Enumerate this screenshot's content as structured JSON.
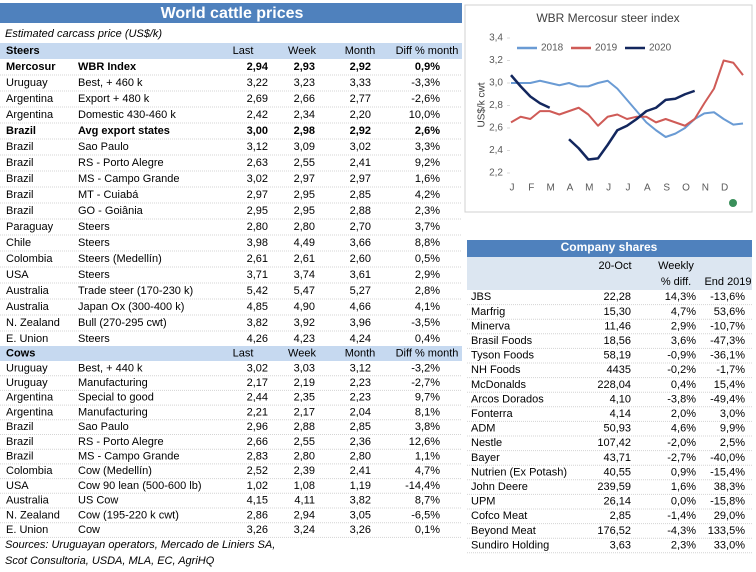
{
  "prices": {
    "title": "World cattle prices",
    "subtitle": "Estimated carcass price (US$/k)",
    "sections": [
      {
        "name": "Steers",
        "columns": [
          "Last",
          "Week",
          "Month",
          "Diff % month"
        ],
        "rows": [
          [
            "Mercosur",
            "WBR Index",
            "2,94",
            "2,93",
            "2,92",
            "0,9%"
          ],
          [
            "Uruguay",
            "Best, + 460 k",
            "3,22",
            "3,23",
            "3,33",
            "-3,3%"
          ],
          [
            "Argentina",
            "Export + 480 k",
            "2,69",
            "2,66",
            "2,77",
            "-2,6%"
          ],
          [
            "Argentina",
            "Domestic 430-460 k",
            "2,42",
            "2,34",
            "2,20",
            "10,0%"
          ],
          [
            "Brazil",
            "Avg export states",
            "3,00",
            "2,98",
            "2,92",
            "2,6%"
          ],
          [
            "Brazil",
            "Sao Paulo",
            "3,12",
            "3,09",
            "3,02",
            "3,3%"
          ],
          [
            "Brazil",
            "RS - Porto Alegre",
            "2,63",
            "2,55",
            "2,41",
            "9,2%"
          ],
          [
            "Brazil",
            "MS - Campo Grande",
            "3,02",
            "2,97",
            "2,97",
            "1,6%"
          ],
          [
            "Brazil",
            "MT - Cuiabá",
            "2,97",
            "2,95",
            "2,85",
            "4,2%"
          ],
          [
            "Brazil",
            "GO - Goiânia",
            "2,95",
            "2,95",
            "2,88",
            "2,3%"
          ],
          [
            "Paraguay",
            "Steers",
            "2,80",
            "2,80",
            "2,70",
            "3,7%"
          ],
          [
            "Chile",
            "Steers",
            "3,98",
            "4,49",
            "3,66",
            "8,8%"
          ],
          [
            "Colombia",
            "Steers (Medellín)",
            "2,61",
            "2,61",
            "2,60",
            "0,5%"
          ],
          [
            "USA",
            "Steers",
            "3,71",
            "3,74",
            "3,61",
            "2,9%"
          ],
          [
            "Australia",
            "Trade steer (170-230 k)",
            "5,42",
            "5,47",
            "5,27",
            "2,8%"
          ],
          [
            "Australia",
            "Japan Ox (300-400 k)",
            "4,85",
            "4,90",
            "4,66",
            "4,1%"
          ],
          [
            "N. Zealand",
            "Bull (270-295 cwt)",
            "3,82",
            "3,92",
            "3,96",
            "-3,5%"
          ],
          [
            "E. Union",
            "Steers",
            "4,26",
            "4,23",
            "4,24",
            "0,4%"
          ]
        ]
      },
      {
        "name": "Cows",
        "columns": [
          "Last",
          "Week",
          "Month",
          "Diff % month"
        ],
        "rows": [
          [
            "Uruguay",
            "Best, + 440 k",
            "3,02",
            "3,03",
            "3,12",
            "-3,2%"
          ],
          [
            "Uruguay",
            "Manufacturing",
            "2,17",
            "2,19",
            "2,23",
            "-2,7%"
          ],
          [
            "Argentina",
            "Special to good",
            "2,44",
            "2,35",
            "2,23",
            "9,7%"
          ],
          [
            "Argentina",
            "Manufacturing",
            "2,21",
            "2,17",
            "2,04",
            "8,1%"
          ],
          [
            "Brazil",
            "Sao Paulo",
            "2,96",
            "2,88",
            "2,85",
            "3,8%"
          ],
          [
            "Brazil",
            "RS - Porto Alegre",
            "2,66",
            "2,55",
            "2,36",
            "12,6%"
          ],
          [
            "Brazil",
            "MS - Campo Grande",
            "2,83",
            "2,80",
            "2,80",
            "1,1%"
          ],
          [
            "Colombia",
            "Cow (Medellín)",
            "2,52",
            "2,39",
            "2,41",
            "4,7%"
          ],
          [
            "USA",
            "Cow 90 lean (500-600 lb)",
            "1,02",
            "1,08",
            "1,19",
            "-14,4%"
          ],
          [
            "Australia",
            "US Cow",
            "4,15",
            "4,11",
            "3,82",
            "8,7%"
          ],
          [
            "N. Zealand",
            "Cow (195-220 k cwt)",
            "2,86",
            "2,94",
            "3,05",
            "-6,5%"
          ],
          [
            "E. Union",
            "Cow",
            "3,26",
            "3,24",
            "3,26",
            "0,1%"
          ]
        ]
      }
    ],
    "sources": [
      "Sources: Uruguayan operators, Mercado de Liniers SA,",
      "Scot Consultoria, USDA, MLA, EC, AgriHQ"
    ]
  },
  "chart": {
    "type": "line",
    "title": "WBR Mercosur steer index",
    "y_label": "US$/k cwt",
    "x_labels": [
      "J",
      "F",
      "M",
      "A",
      "M",
      "J",
      "J",
      "A",
      "S",
      "O",
      "N",
      "D"
    ],
    "x": [
      0,
      0.5,
      1,
      1.5,
      2,
      2.5,
      3,
      3.5,
      4,
      4.5,
      5,
      5.5,
      6,
      6.5,
      7,
      7.5,
      8,
      8.5,
      9,
      9.5,
      10,
      10.5,
      11,
      11.5,
      12
    ],
    "xlim": [
      0,
      12
    ],
    "ylim": [
      2.2,
      3.4
    ],
    "yticks": [
      {
        "value": 2.2,
        "label": "2,2"
      },
      {
        "value": 2.4,
        "label": "2,4"
      },
      {
        "value": 2.6,
        "label": "2,6"
      },
      {
        "value": 2.8,
        "label": "2,8"
      },
      {
        "value": 3,
        "label": "3,0"
      },
      {
        "value": 3.2,
        "label": "3,2"
      },
      {
        "value": 3.4,
        "label": "3,4"
      }
    ],
    "series": [
      {
        "name": "2018",
        "color": "#6a9bd4",
        "values": [
          3.0,
          3.0,
          3.0,
          3.02,
          3.0,
          2.98,
          3.0,
          2.97,
          2.97,
          3.0,
          3.02,
          2.95,
          2.85,
          2.75,
          2.65,
          2.58,
          2.52,
          2.55,
          2.6,
          2.68,
          2.73,
          2.74,
          2.68,
          2.63,
          2.64
        ]
      },
      {
        "name": "2019",
        "color": "#cf5b57",
        "values": [
          2.65,
          2.7,
          2.68,
          2.75,
          2.75,
          2.72,
          2.75,
          2.78,
          2.72,
          2.62,
          2.7,
          2.72,
          2.68,
          2.7,
          2.7,
          2.65,
          2.68,
          2.65,
          2.62,
          2.68,
          2.82,
          2.95,
          3.2,
          3.18,
          3.07
        ]
      },
      {
        "name": "2020",
        "color": "#13275e",
        "values": [
          3.07,
          2.97,
          2.88,
          2.82,
          2.78,
          null,
          2.5,
          2.42,
          2.32,
          2.33,
          2.45,
          2.58,
          2.62,
          2.68,
          2.75,
          2.78,
          2.85,
          2.86,
          2.9,
          2.93,
          null,
          null,
          null,
          null,
          null
        ]
      }
    ]
  },
  "shares": {
    "title": "Company shares",
    "columns": [
      "20-Oct",
      [
        "Weekly",
        "% diff."
      ],
      "End 2019"
    ],
    "rows": [
      [
        "JBS",
        "22,28",
        "14,3%",
        "-13,6%"
      ],
      [
        "Marfrig",
        "15,30",
        "4,7%",
        "53,6%"
      ],
      [
        "Minerva",
        "11,46",
        "2,9%",
        "-10,7%"
      ],
      [
        "Brasil Foods",
        "18,56",
        "3,6%",
        "-47,3%"
      ],
      [
        "Tyson Foods",
        "58,19",
        "-0,9%",
        "-36,1%"
      ],
      [
        "NH Foods",
        "4435",
        "-0,2%",
        "-1,7%"
      ],
      [
        "McDonalds",
        "228,04",
        "0,4%",
        "15,4%"
      ],
      [
        "Arcos Dorados",
        "4,10",
        "-3,8%",
        "-49,4%"
      ],
      [
        "Fonterra",
        "4,14",
        "2,0%",
        "3,0%"
      ],
      [
        "ADM",
        "50,93",
        "4,6%",
        "9,9%"
      ],
      [
        "Nestle",
        "107,42",
        "-2,0%",
        "2,5%"
      ],
      [
        "Bayer",
        "43,71",
        "-2,7%",
        "-40,0%"
      ],
      [
        "Nutrien (Ex Potash)",
        "40,55",
        "0,9%",
        "-15,4%"
      ],
      [
        "John Deere",
        "239,59",
        "1,6%",
        "38,3%"
      ],
      [
        "UPM",
        "26,14",
        "0,0%",
        "-15,8%"
      ],
      [
        "Cofco Meat",
        "2,85",
        "-1,4%",
        "29,0%"
      ],
      [
        "Beyond Meat",
        "176,52",
        "-4,3%",
        "133,5%"
      ],
      [
        "Sundiro Holding",
        "3,63",
        "2,3%",
        "33,0%"
      ]
    ]
  }
}
